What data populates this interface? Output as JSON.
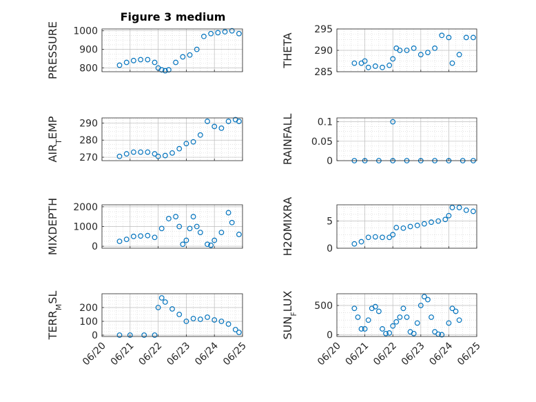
{
  "figure": {
    "title": "Figure 3 medium",
    "marker_color": "#0072BD",
    "grid": true,
    "x_ticks": [
      "06/20",
      "06/21",
      "06/22",
      "06/23",
      "06/24",
      "06/25"
    ],
    "x_range": [
      "06/20",
      "06/25"
    ]
  },
  "chart_data": [
    {
      "type": "scatter",
      "id": "pressure",
      "ylabel": "PRESSURE",
      "yticks": [
        800,
        900,
        1000
      ],
      "ylim": [
        780,
        1010
      ],
      "series": [
        {
          "points": [
            [
              "06/20 15:00",
              815
            ],
            [
              "06/20 21:00",
              830
            ],
            [
              "06/21 03:00",
              840
            ],
            [
              "06/21 09:00",
              845
            ],
            [
              "06/21 15:00",
              845
            ],
            [
              "06/21 21:00",
              830
            ],
            [
              "06/22 00:00",
              800
            ],
            [
              "06/22 03:00",
              790
            ],
            [
              "06/22 06:00",
              785
            ],
            [
              "06/22 09:00",
              790
            ],
            [
              "06/22 15:00",
              830
            ],
            [
              "06/22 21:00",
              860
            ],
            [
              "06/23 03:00",
              870
            ],
            [
              "06/23 09:00",
              900
            ],
            [
              "06/23 15:00",
              970
            ],
            [
              "06/23 21:00",
              985
            ],
            [
              "06/24 03:00",
              990
            ],
            [
              "06/24 09:00",
              995
            ],
            [
              "06/24 15:00",
              1000
            ],
            [
              "06/24 21:00",
              985
            ]
          ]
        }
      ]
    },
    {
      "type": "scatter",
      "id": "theta",
      "ylabel": "THETA",
      "yticks": [
        285,
        290,
        295
      ],
      "ylim": [
        285,
        295
      ],
      "series": [
        {
          "points": [
            [
              "06/20 15:00",
              287
            ],
            [
              "06/20 21:00",
              287
            ],
            [
              "06/21 00:00",
              287.5
            ],
            [
              "06/21 03:00",
              286
            ],
            [
              "06/21 09:00",
              286.3
            ],
            [
              "06/21 15:00",
              286
            ],
            [
              "06/21 21:00",
              286.5
            ],
            [
              "06/22 00:00",
              288
            ],
            [
              "06/22 03:00",
              290.5
            ],
            [
              "06/22 06:00",
              290
            ],
            [
              "06/22 12:00",
              290
            ],
            [
              "06/22 18:00",
              290.5
            ],
            [
              "06/23 00:00",
              289
            ],
            [
              "06/23 06:00",
              289.5
            ],
            [
              "06/23 12:00",
              290.5
            ],
            [
              "06/23 18:00",
              293.5
            ],
            [
              "06/24 00:00",
              293
            ],
            [
              "06/24 03:00",
              287
            ],
            [
              "06/24 09:00",
              289
            ],
            [
              "06/24 15:00",
              293
            ],
            [
              "06/24 21:00",
              293
            ]
          ]
        }
      ]
    },
    {
      "type": "scatter",
      "id": "air-temp",
      "ylabel": "AIR_TEMP",
      "yticks": [
        270,
        280,
        290
      ],
      "ylim": [
        268,
        293
      ],
      "series": [
        {
          "points": [
            [
              "06/20 15:00",
              270.5
            ],
            [
              "06/20 21:00",
              272
            ],
            [
              "06/21 03:00",
              273
            ],
            [
              "06/21 09:00",
              273
            ],
            [
              "06/21 15:00",
              273
            ],
            [
              "06/21 21:00",
              272
            ],
            [
              "06/22 00:00",
              270.5
            ],
            [
              "06/22 06:00",
              271
            ],
            [
              "06/22 12:00",
              272.5
            ],
            [
              "06/22 18:00",
              275
            ],
            [
              "06/23 00:00",
              278
            ],
            [
              "06/23 06:00",
              279
            ],
            [
              "06/23 12:00",
              283
            ],
            [
              "06/23 18:00",
              291
            ],
            [
              "06/24 00:00",
              288
            ],
            [
              "06/24 06:00",
              287
            ],
            [
              "06/24 12:00",
              291
            ],
            [
              "06/24 18:00",
              292
            ],
            [
              "06/24 21:00",
              291
            ]
          ]
        }
      ]
    },
    {
      "type": "scatter",
      "id": "rainfall",
      "ylabel": "RAINFALL",
      "yticks": [
        0,
        0.05,
        0.1
      ],
      "ylim": [
        0,
        0.11
      ],
      "series": [
        {
          "points": [
            [
              "06/20 15:00",
              0
            ],
            [
              "06/21 00:00",
              0
            ],
            [
              "06/21 12:00",
              0
            ],
            [
              "06/22 00:00",
              0
            ],
            [
              "06/22 00:00",
              0.1
            ],
            [
              "06/22 12:00",
              0
            ],
            [
              "06/23 00:00",
              0
            ],
            [
              "06/23 12:00",
              0
            ],
            [
              "06/24 00:00",
              0
            ],
            [
              "06/24 12:00",
              0
            ],
            [
              "06/24 21:00",
              0
            ]
          ]
        }
      ]
    },
    {
      "type": "scatter",
      "id": "mixdepth",
      "ylabel": "MIXDEPTH",
      "yticks": [
        0,
        1000,
        2000
      ],
      "ylim": [
        -100,
        2100
      ],
      "series": [
        {
          "points": [
            [
              "06/20 15:00",
              250
            ],
            [
              "06/20 21:00",
              350
            ],
            [
              "06/21 03:00",
              500
            ],
            [
              "06/21 09:00",
              520
            ],
            [
              "06/21 15:00",
              540
            ],
            [
              "06/21 21:00",
              450
            ],
            [
              "06/22 03:00",
              900
            ],
            [
              "06/22 09:00",
              1400
            ],
            [
              "06/22 15:00",
              1500
            ],
            [
              "06/22 18:00",
              1000
            ],
            [
              "06/22 21:00",
              100
            ],
            [
              "06/23 00:00",
              300
            ],
            [
              "06/23 03:00",
              900
            ],
            [
              "06/23 06:00",
              1500
            ],
            [
              "06/23 09:00",
              1000
            ],
            [
              "06/23 12:00",
              700
            ],
            [
              "06/23 18:00",
              100
            ],
            [
              "06/23 21:00",
              50
            ],
            [
              "06/24 00:00",
              300
            ],
            [
              "06/24 06:00",
              700
            ],
            [
              "06/24 12:00",
              1700
            ],
            [
              "06/24 15:00",
              1200
            ],
            [
              "06/24 21:00",
              600
            ]
          ]
        }
      ]
    },
    {
      "type": "scatter",
      "id": "h2omixra",
      "ylabel": "H2OMIXRA",
      "yticks": [
        0,
        5
      ],
      "ylim": [
        0,
        8
      ],
      "series": [
        {
          "points": [
            [
              "06/20 15:00",
              0.8
            ],
            [
              "06/20 21:00",
              1.2
            ],
            [
              "06/21 03:00",
              2
            ],
            [
              "06/21 09:00",
              2.1
            ],
            [
              "06/21 15:00",
              2
            ],
            [
              "06/21 21:00",
              2
            ],
            [
              "06/22 00:00",
              2.5
            ],
            [
              "06/22 03:00",
              3.8
            ],
            [
              "06/22 09:00",
              3.7
            ],
            [
              "06/22 15:00",
              4
            ],
            [
              "06/22 21:00",
              4.2
            ],
            [
              "06/23 03:00",
              4.5
            ],
            [
              "06/23 09:00",
              4.8
            ],
            [
              "06/23 15:00",
              5
            ],
            [
              "06/23 21:00",
              5.3
            ],
            [
              "06/24 00:00",
              6
            ],
            [
              "06/24 03:00",
              7.5
            ],
            [
              "06/24 09:00",
              7.5
            ],
            [
              "06/24 15:00",
              7
            ],
            [
              "06/24 21:00",
              6.8
            ]
          ]
        }
      ]
    },
    {
      "type": "scatter",
      "id": "terr-msl",
      "ylabel": "TERR_MSL",
      "yticks": [
        0,
        100,
        200
      ],
      "ylim": [
        -10,
        300
      ],
      "series": [
        {
          "points": [
            [
              "06/20 15:00",
              0
            ],
            [
              "06/21 00:00",
              0
            ],
            [
              "06/21 12:00",
              0
            ],
            [
              "06/21 21:00",
              0
            ],
            [
              "06/22 00:00",
              200
            ],
            [
              "06/22 03:00",
              270
            ],
            [
              "06/22 06:00",
              240
            ],
            [
              "06/22 12:00",
              190
            ],
            [
              "06/22 18:00",
              150
            ],
            [
              "06/23 00:00",
              100
            ],
            [
              "06/23 06:00",
              120
            ],
            [
              "06/23 12:00",
              115
            ],
            [
              "06/23 18:00",
              130
            ],
            [
              "06/24 00:00",
              110
            ],
            [
              "06/24 06:00",
              100
            ],
            [
              "06/24 12:00",
              80
            ],
            [
              "06/24 18:00",
              40
            ],
            [
              "06/24 21:00",
              20
            ]
          ]
        }
      ]
    },
    {
      "type": "scatter",
      "id": "sun-flux",
      "ylabel": "SUN_FLUX",
      "yticks": [
        0,
        500
      ],
      "ylim": [
        -30,
        700
      ],
      "series": [
        {
          "points": [
            [
              "06/20 15:00",
              450
            ],
            [
              "06/20 18:00",
              300
            ],
            [
              "06/20 21:00",
              100
            ],
            [
              "06/21 00:00",
              100
            ],
            [
              "06/21 03:00",
              250
            ],
            [
              "06/21 06:00",
              450
            ],
            [
              "06/21 09:00",
              480
            ],
            [
              "06/21 12:00",
              400
            ],
            [
              "06/21 15:00",
              100
            ],
            [
              "06/21 18:00",
              20
            ],
            [
              "06/21 21:00",
              30
            ],
            [
              "06/22 00:00",
              150
            ],
            [
              "06/22 03:00",
              220
            ],
            [
              "06/22 06:00",
              300
            ],
            [
              "06/22 09:00",
              450
            ],
            [
              "06/22 12:00",
              300
            ],
            [
              "06/22 15:00",
              50
            ],
            [
              "06/22 18:00",
              20
            ],
            [
              "06/22 21:00",
              200
            ],
            [
              "06/23 00:00",
              500
            ],
            [
              "06/23 03:00",
              650
            ],
            [
              "06/23 06:00",
              600
            ],
            [
              "06/23 09:00",
              300
            ],
            [
              "06/23 12:00",
              50
            ],
            [
              "06/23 15:00",
              10
            ],
            [
              "06/23 18:00",
              0
            ],
            [
              "06/24 00:00",
              200
            ],
            [
              "06/24 03:00",
              450
            ],
            [
              "06/24 06:00",
              400
            ],
            [
              "06/24 09:00",
              250
            ]
          ]
        }
      ]
    }
  ]
}
